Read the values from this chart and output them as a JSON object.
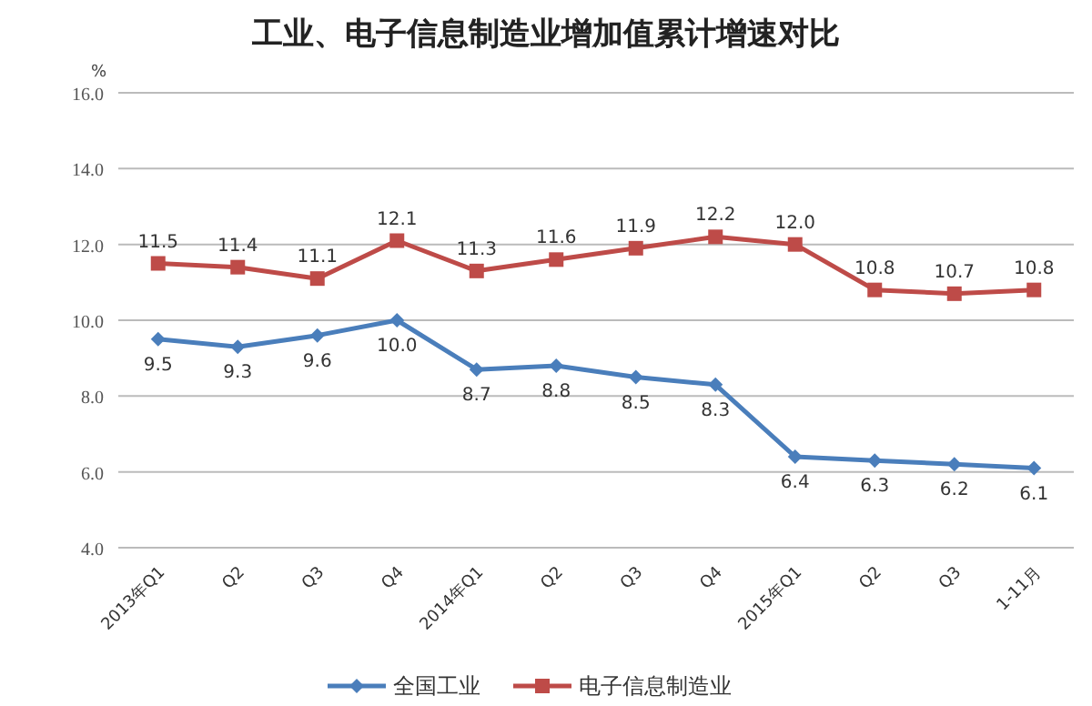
{
  "chart_data": {
    "type": "line",
    "title": "工业、电子信息制造业增加值累计增速对比",
    "ylabel": "%",
    "categories": [
      "2013年Q1",
      "Q2",
      "Q3",
      "Q4",
      "2014年Q1",
      "Q2",
      "Q3",
      "Q4",
      "2015年Q1",
      "Q2",
      "Q3",
      "1-11月"
    ],
    "series": [
      {
        "name": "全国工业",
        "color": "#4a7ebb",
        "marker": "diamond",
        "values": [
          9.5,
          9.3,
          9.6,
          10.0,
          8.7,
          8.8,
          8.5,
          8.3,
          6.4,
          6.3,
          6.2,
          6.1
        ],
        "value_labels": [
          "9.5",
          "9.3",
          "9.6",
          "10.0",
          "8.7",
          "8.8",
          "8.5",
          "8.3",
          "6.4",
          "6.3",
          "6.2",
          "6.1"
        ]
      },
      {
        "name": "电子信息制造业",
        "color": "#be4b48",
        "marker": "square",
        "values": [
          11.5,
          11.4,
          11.1,
          12.1,
          11.3,
          11.6,
          11.9,
          12.2,
          12.0,
          10.8,
          10.7,
          10.8
        ],
        "value_labels": [
          "11.5",
          "11.4",
          "11.1",
          "12.1",
          "11.3",
          "11.6",
          "11.9",
          "12.2",
          "12.0",
          "10.8",
          "10.7",
          "10.8"
        ]
      }
    ],
    "ylim": [
      4,
      16
    ],
    "yticks": [
      {
        "value": 4,
        "label": "4.0"
      },
      {
        "value": 6,
        "label": "6.0"
      },
      {
        "value": 8,
        "label": "8.0"
      },
      {
        "value": 10,
        "label": "10.0"
      },
      {
        "value": 12,
        "label": "12.0"
      },
      {
        "value": 14,
        "label": "14.0"
      },
      {
        "value": 16,
        "label": "16.0"
      }
    ],
    "grid": "y",
    "legend": "bottom",
    "line_style": "solid"
  }
}
